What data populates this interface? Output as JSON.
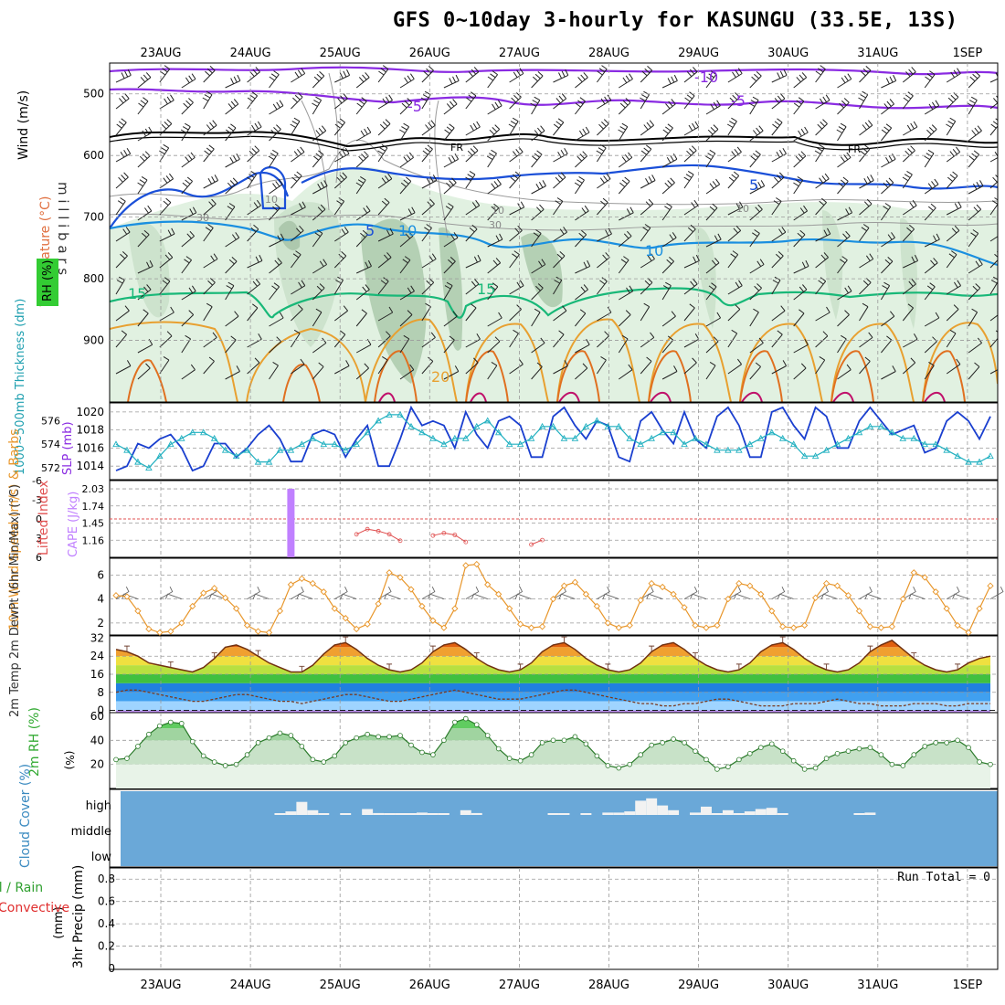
{
  "title": "GFS 0~10day 3-hourly for KASUNGU (33.5E, 13S)",
  "days": [
    "23AUG",
    "24AUG",
    "25AUG",
    "26AUG",
    "27AUG",
    "28AUG",
    "29AUG",
    "30AUG",
    "31AUG",
    "1SEP"
  ],
  "colors": {
    "grid": "#9a9a9a",
    "temp_purple": "#8a2be2",
    "temp_black": "#000000",
    "temp_blue": "#1a4fd8",
    "temp_lightblue": "#1a8fe0",
    "temp_green": "#18b878",
    "temp_orange": "#e8a030",
    "temp_darkorange": "#e07020",
    "temp_magenta": "#c0106a",
    "rh_green": "#cfe6cf",
    "slp": "#1a3fcf",
    "thickness": "#20b0c0",
    "lifted": "#e05050",
    "cape": "#c080ff",
    "wind10": "#e8962a",
    "rh2m": "#4cc04c",
    "cloud_bg": "#6aa8d8",
    "cloud_bar": "#f2f2f2",
    "precip_green": "#30a030",
    "precip_red": "#e03030"
  },
  "chart_data": [
    {
      "name": "upper-air",
      "type": "heatmap",
      "ylabel": "m i l l i b a r s",
      "left_labels": [
        "Wind (m/s)",
        "Temperature (°C)",
        "RH (%)"
      ],
      "y_axis": {
        "ticks": [
          500,
          600,
          700,
          800,
          900
        ],
        "ylim": [
          1000,
          450
        ],
        "reversed": true
      },
      "isotherm_labels": [
        "-10",
        "-5",
        "-5",
        "FR",
        "FR",
        "5",
        "5",
        "10",
        "10",
        "15",
        "15",
        "20"
      ],
      "rh_labels": [
        "10",
        "30",
        "30",
        "10",
        "10"
      ],
      "isotherms": [
        {
          "label": "-10",
          "level_mb": 455
        },
        {
          "label": "-5",
          "level_mb": 500
        },
        {
          "label": "FR",
          "level_mb": 560
        },
        {
          "label": "5",
          "level_mb": 615
        },
        {
          "label": "10",
          "level_mb": 690
        },
        {
          "label": "15",
          "level_mb": 760
        },
        {
          "label": "20",
          "level_mb": 860
        }
      ]
    },
    {
      "name": "slp-thickness",
      "type": "line",
      "ylabel_left": "1000~500mb Thickness (dm)",
      "ylabel_right": "SLP (mb)",
      "left_ticks": [
        "576",
        "574",
        "572"
      ],
      "right_ticks": [
        "1020",
        "1018",
        "1016",
        "1014"
      ],
      "ylim_slp": [
        1012.5,
        1021
      ],
      "ylim_thickness": [
        571,
        577.5
      ],
      "series": [
        {
          "name": "SLP (mb)",
          "values": [
            1013.5,
            1014.0,
            1016.5,
            1016.0,
            1017.0,
            1017.5,
            1016.0,
            1013.5,
            1014.0,
            1016.5,
            1016.5,
            1015.0,
            1016.0,
            1017.5,
            1018.5,
            1017.0,
            1014.5,
            1014.5,
            1017.5,
            1018.0,
            1017.5,
            1015.0,
            1017.0,
            1018.5,
            1014.0,
            1014.0,
            1017.0,
            1020.5,
            1018.5,
            1019.0,
            1018.5,
            1016.0,
            1020.0,
            1017.5,
            1016.0,
            1019.0,
            1019.5,
            1018.5,
            1015.0,
            1015.0,
            1019.5,
            1020.5,
            1018.5,
            1017.0,
            1019.0,
            1018.5,
            1015.0,
            1014.5,
            1019.0,
            1020.0,
            1018.0,
            1016.5,
            1020.0,
            1017.0,
            1016.0,
            1019.5,
            1020.5,
            1018.5,
            1015.0,
            1015.0,
            1020.0,
            1020.5,
            1018.5,
            1017.0,
            1020.5,
            1019.5,
            1016.0,
            1016.0,
            1019.0,
            1020.5,
            1019.0,
            1017.5,
            1018.0,
            1018.5,
            1015.5,
            1016.0,
            1019.0,
            1020.0,
            1019.0,
            1017.0,
            1019.5
          ]
        },
        {
          "name": "Thickness (dm)",
          "values": [
            574.0,
            573.5,
            572.5,
            572.0,
            573.0,
            574.0,
            574.5,
            575.0,
            575.0,
            574.5,
            573.5,
            573.0,
            573.5,
            572.5,
            572.5,
            573.5,
            573.5,
            574.0,
            574.5,
            574.0,
            574.0,
            573.5,
            574.0,
            575.0,
            576.0,
            576.5,
            576.5,
            575.5,
            575.0,
            574.5,
            574.0,
            574.5,
            574.5,
            575.5,
            576.0,
            575.0,
            574.0,
            574.0,
            574.5,
            575.5,
            575.5,
            574.5,
            574.5,
            575.5,
            576.0,
            575.5,
            575.5,
            574.5,
            574.0,
            574.5,
            575.0,
            575.0,
            574.0,
            574.5,
            574.0,
            573.5,
            573.5,
            573.5,
            574.0,
            574.5,
            575.0,
            574.5,
            574.0,
            573.0,
            573.0,
            573.5,
            574.0,
            574.5,
            575.0,
            575.5,
            575.5,
            575.0,
            574.5,
            574.5,
            574.0,
            574.0,
            573.5,
            573.0,
            572.5,
            572.5,
            573.0
          ]
        }
      ]
    },
    {
      "name": "lifted-cape",
      "type": "bar",
      "ylabel_left": "Lifted Index",
      "ylabel_right": "CAPE (J/kg)",
      "left_ticks": [
        "-6",
        "-3",
        "0",
        "3",
        "6"
      ],
      "right_ticks": [
        "2.03",
        "1.74",
        "1.45",
        "1.16"
      ],
      "cape": {
        "category_index": 16,
        "value": 2.03,
        "ylim": [
          0.87,
          2.17
        ]
      },
      "lifted_index": {
        "ylim": [
          6,
          -6
        ],
        "values": [
          null,
          null,
          null,
          null,
          null,
          null,
          null,
          null,
          null,
          null,
          null,
          null,
          null,
          null,
          null,
          null,
          null,
          null,
          null,
          null,
          null,
          null,
          2.4,
          1.6,
          1.9,
          2.4,
          3.4,
          null,
          null,
          2.6,
          2.2,
          2.5,
          3.6,
          null,
          null,
          null,
          null,
          null,
          4.0,
          3.3,
          null,
          null,
          null,
          null,
          null,
          null,
          null,
          null,
          null,
          null,
          null,
          null,
          null,
          null,
          null,
          null,
          null,
          null,
          null,
          null,
          null,
          null,
          null,
          null,
          null,
          null,
          null,
          null,
          null,
          null,
          null,
          null,
          null,
          null,
          null,
          null,
          null,
          null,
          null,
          null,
          null
        ]
      }
    },
    {
      "name": "wind-10m",
      "type": "line",
      "ylabel": "10m Wind Speed (m/s) & Barbs",
      "ticks": [
        "6",
        "4",
        "2"
      ],
      "ylim": [
        1,
        7.4
      ],
      "series": [
        {
          "name": "10m Wind Speed (m/s)",
          "values": [
            4.3,
            4.2,
            3.0,
            1.5,
            1.2,
            1.3,
            2.0,
            3.4,
            4.5,
            4.9,
            4.1,
            3.2,
            1.8,
            1.3,
            1.2,
            3.0,
            5.2,
            5.7,
            5.3,
            4.6,
            3.2,
            2.4,
            1.5,
            1.9,
            3.6,
            6.2,
            5.8,
            4.8,
            3.4,
            2.2,
            1.6,
            3.2,
            6.8,
            6.9,
            5.2,
            4.4,
            3.2,
            1.9,
            1.6,
            1.7,
            4.0,
            5.1,
            5.4,
            4.4,
            3.4,
            2.0,
            1.6,
            1.8,
            3.9,
            5.3,
            5.0,
            4.4,
            3.3,
            1.8,
            1.6,
            1.8,
            4.0,
            5.3,
            5.1,
            4.4,
            3.0,
            1.7,
            1.6,
            1.8,
            4.1,
            5.3,
            5.1,
            4.3,
            3.0,
            1.7,
            1.6,
            1.7,
            4.0,
            6.2,
            5.8,
            4.6,
            3.2,
            1.8,
            1.2,
            3.2,
            5.1
          ]
        }
      ]
    },
    {
      "name": "temp-dewpoint-2m",
      "type": "area",
      "ylabel": "2m Temp 2m DewPt (6hr Min/Max) (°C)",
      "ticks": [
        "32",
        "24",
        "16",
        "8",
        "0"
      ],
      "ylim": [
        -1,
        33
      ],
      "series": [
        {
          "name": "2m Temp (°C)",
          "values": [
            27,
            26,
            24,
            21,
            20,
            19,
            18,
            17,
            19,
            23,
            28,
            29,
            27,
            24,
            21,
            19,
            17,
            17,
            20,
            25,
            29,
            30,
            27,
            23,
            20,
            18,
            17,
            18,
            21,
            26,
            29,
            30,
            27,
            23,
            20,
            18,
            17,
            18,
            21,
            26,
            29,
            30,
            27,
            23,
            20,
            18,
            17,
            18,
            21,
            26,
            29,
            30,
            27,
            23,
            20,
            18,
            17,
            18,
            21,
            26,
            29,
            30,
            27,
            23,
            20,
            18,
            17,
            18,
            21,
            26,
            29,
            31,
            27,
            23,
            20,
            18,
            17,
            18,
            21,
            23,
            24
          ]
        },
        {
          "name": "2m DewPt (°C)",
          "values": [
            8,
            9,
            9,
            8,
            7,
            6,
            5,
            4,
            4,
            5,
            6,
            7,
            7,
            6,
            5,
            4,
            4,
            3,
            4,
            5,
            6,
            7,
            7,
            6,
            5,
            4,
            4,
            5,
            6,
            7,
            8,
            9,
            8,
            7,
            6,
            5,
            5,
            5,
            6,
            7,
            8,
            9,
            9,
            8,
            7,
            6,
            5,
            4,
            3,
            3,
            2,
            2,
            3,
            3,
            4,
            5,
            5,
            4,
            3,
            2,
            2,
            2,
            3,
            3,
            3,
            4,
            5,
            4,
            3,
            3,
            2,
            2,
            2,
            3,
            3,
            3,
            2,
            2,
            3,
            3,
            3
          ]
        }
      ]
    },
    {
      "name": "rh-2m",
      "type": "area",
      "ylabel": "2m RH (%)",
      "ticks": [
        "60",
        "40",
        "20"
      ],
      "ylim": [
        0,
        63
      ],
      "series": [
        {
          "name": "2m RH (%)",
          "values": [
            24,
            25,
            35,
            45,
            52,
            55,
            54,
            39,
            27,
            22,
            19,
            20,
            28,
            38,
            42,
            46,
            44,
            35,
            24,
            22,
            27,
            38,
            42,
            45,
            43,
            43,
            44,
            36,
            30,
            28,
            40,
            55,
            58,
            53,
            44,
            33,
            25,
            23,
            28,
            38,
            40,
            40,
            43,
            37,
            27,
            19,
            17,
            20,
            28,
            36,
            38,
            41,
            38,
            31,
            24,
            16,
            18,
            24,
            29,
            34,
            37,
            31,
            23,
            16,
            17,
            25,
            29,
            31,
            33,
            34,
            28,
            20,
            19,
            28,
            35,
            38,
            38,
            40,
            34,
            22,
            20
          ]
        }
      ]
    },
    {
      "name": "cloud-cover",
      "type": "bar",
      "ylabel": "Cloud Cover (%)",
      "tiers": [
        "high",
        "middle",
        "low"
      ],
      "series": [
        {
          "name": "high cloud (%)",
          "values": [
            0,
            0,
            0,
            0,
            0,
            0,
            0,
            0,
            0,
            0,
            0,
            0,
            0,
            0,
            0,
            5,
            15,
            55,
            20,
            5,
            0,
            5,
            0,
            25,
            8,
            5,
            4,
            5,
            10,
            6,
            5,
            0,
            20,
            8,
            0,
            0,
            0,
            0,
            0,
            0,
            5,
            5,
            0,
            5,
            0,
            10,
            10,
            15,
            60,
            70,
            40,
            20,
            0,
            10,
            35,
            5,
            20,
            5,
            15,
            25,
            30,
            5,
            0,
            0,
            0,
            0,
            0,
            0,
            5,
            10,
            0,
            0,
            0,
            0,
            0,
            0,
            0,
            0,
            0,
            0,
            0
          ]
        }
      ]
    },
    {
      "name": "precip-3hr",
      "type": "bar",
      "ylabel": "3hr Precip (mm)",
      "legend": [
        "Total / Rain",
        "Convective"
      ],
      "run_total_label": "Run Total = 0",
      "ticks": [
        "0.8",
        "0.6",
        "0.4",
        "0.2",
        "0"
      ],
      "ylim": [
        0,
        0.9
      ],
      "series": [
        {
          "name": "Total / Rain",
          "values": []
        },
        {
          "name": "Convective",
          "values": []
        }
      ]
    }
  ]
}
